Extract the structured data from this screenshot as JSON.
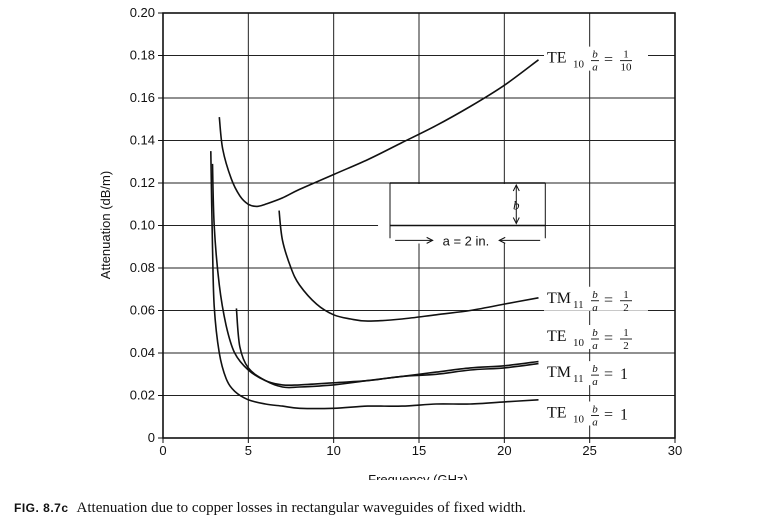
{
  "chart_data": {
    "type": "line",
    "xlabel": "Frequency (GHz)",
    "ylabel": "Attenuation (dB/m)",
    "xlim": [
      0,
      30
    ],
    "ylim": [
      0,
      0.2
    ],
    "x_ticks": [
      "0",
      "5",
      "10",
      "15",
      "20",
      "25",
      "30"
    ],
    "y_ticks": [
      "0",
      "0.02",
      "0.04",
      "0.06",
      "0.08",
      "0.10",
      "0.12",
      "0.14",
      "0.16",
      "0.18",
      "0.20"
    ],
    "grid": true,
    "series": [
      {
        "name": "TE10 b/a = 1/10",
        "label": {
          "mode": "TE",
          "sub": "10",
          "ratio_num": "1",
          "ratio_den": "10"
        },
        "points": [
          [
            3.3,
            0.151
          ],
          [
            3.5,
            0.136
          ],
          [
            4.0,
            0.122
          ],
          [
            4.5,
            0.114
          ],
          [
            5.0,
            0.11
          ],
          [
            5.5,
            0.109
          ],
          [
            6.0,
            0.11
          ],
          [
            7.0,
            0.113
          ],
          [
            8.0,
            0.117
          ],
          [
            10.0,
            0.124
          ],
          [
            12.0,
            0.131
          ],
          [
            14.0,
            0.139
          ],
          [
            16.0,
            0.147
          ],
          [
            18.0,
            0.156
          ],
          [
            20.0,
            0.166
          ],
          [
            22.0,
            0.178
          ]
        ]
      },
      {
        "name": "TM11 b/a = 1/2",
        "label": {
          "mode": "TM",
          "sub": "11",
          "ratio_num": "1",
          "ratio_den": "2"
        },
        "points": [
          [
            6.8,
            0.107
          ],
          [
            7.0,
            0.093
          ],
          [
            7.5,
            0.08
          ],
          [
            8.0,
            0.072
          ],
          [
            9.0,
            0.063
          ],
          [
            10.0,
            0.058
          ],
          [
            11.0,
            0.056
          ],
          [
            12.0,
            0.055
          ],
          [
            14.0,
            0.056
          ],
          [
            16.0,
            0.058
          ],
          [
            18.0,
            0.06
          ],
          [
            20.0,
            0.063
          ],
          [
            22.0,
            0.066
          ]
        ]
      },
      {
        "name": "TE10 b/a = 1/2",
        "label": {
          "mode": "TE",
          "sub": "10",
          "ratio_num": "1",
          "ratio_den": "2"
        },
        "points": [
          [
            2.9,
            0.129
          ],
          [
            3.0,
            0.1
          ],
          [
            3.3,
            0.072
          ],
          [
            3.7,
            0.053
          ],
          [
            4.2,
            0.04
          ],
          [
            5.0,
            0.032
          ],
          [
            6.0,
            0.027
          ],
          [
            7.0,
            0.025
          ],
          [
            8.0,
            0.025
          ],
          [
            10.0,
            0.026
          ],
          [
            12.0,
            0.027
          ],
          [
            14.0,
            0.029
          ],
          [
            16.0,
            0.03
          ],
          [
            18.0,
            0.032
          ],
          [
            20.0,
            0.033
          ],
          [
            22.0,
            0.035
          ]
        ]
      },
      {
        "name": "TM11 b/a = 1",
        "label": {
          "mode": "TM",
          "sub": "11",
          "ratio_num": "",
          "ratio_den": "",
          "ratio": "1"
        },
        "points": [
          [
            4.3,
            0.061
          ],
          [
            4.5,
            0.043
          ],
          [
            5.0,
            0.033
          ],
          [
            6.0,
            0.027
          ],
          [
            7.0,
            0.024
          ],
          [
            8.0,
            0.024
          ],
          [
            10.0,
            0.025
          ],
          [
            12.0,
            0.027
          ],
          [
            14.0,
            0.029
          ],
          [
            16.0,
            0.031
          ],
          [
            18.0,
            0.033
          ],
          [
            20.0,
            0.034
          ],
          [
            22.0,
            0.036
          ]
        ]
      },
      {
        "name": "TE10 b/a = 1",
        "label": {
          "mode": "TE",
          "sub": "10",
          "ratio_num": "",
          "ratio_den": "",
          "ratio": "1"
        },
        "points": [
          [
            2.8,
            0.135
          ],
          [
            2.9,
            0.09
          ],
          [
            3.0,
            0.062
          ],
          [
            3.3,
            0.04
          ],
          [
            3.7,
            0.028
          ],
          [
            4.2,
            0.022
          ],
          [
            5.0,
            0.018
          ],
          [
            6.0,
            0.016
          ],
          [
            7.0,
            0.015
          ],
          [
            8.0,
            0.014
          ],
          [
            10.0,
            0.014
          ],
          [
            12.0,
            0.015
          ],
          [
            14.0,
            0.015
          ],
          [
            16.0,
            0.016
          ],
          [
            18.0,
            0.016
          ],
          [
            20.0,
            0.017
          ],
          [
            22.0,
            0.018
          ]
        ]
      }
    ],
    "inset": {
      "a_label": "a = 2 in.",
      "b_label": "b"
    }
  },
  "caption": {
    "figure_number": "FIG. 8.7c",
    "text": "Attenuation due to copper losses in rectangular waveguides of fixed width."
  }
}
